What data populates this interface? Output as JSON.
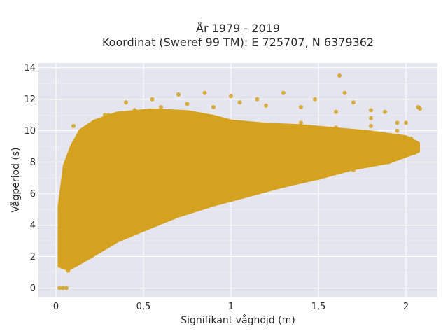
{
  "chart_data": {
    "type": "scatter",
    "title_line1": "År 1979 - 2019",
    "title_line2": "Koordinat (Sweref 99 TM): E 725707, N 6379362",
    "xlabel": "Signifikant våghöjd (m)",
    "ylabel": "Vågperiod (s)",
    "xlim": [
      -0.1,
      2.18
    ],
    "ylim": [
      -0.6,
      14.3
    ],
    "x_ticks": [
      0,
      0.5,
      1,
      1.5,
      2
    ],
    "x_tick_labels": [
      "0",
      "0,5",
      "1",
      "1,5",
      "2"
    ],
    "y_ticks": [
      0,
      2,
      4,
      6,
      8,
      10,
      12,
      14
    ],
    "y_tick_labels": [
      "0",
      "2",
      "4",
      "6",
      "8",
      "10",
      "12",
      "14"
    ],
    "grid": true,
    "marker_color": "#D4A21F",
    "plot_bg": "#E5E5EF",
    "x": [
      0.02,
      0.04,
      0.06,
      0.05,
      0.07,
      0.03,
      0.05,
      0.08,
      0.1,
      0.12,
      0.15,
      0.18,
      0.2,
      0.1,
      0.3,
      0.45,
      0.6,
      0.75,
      0.9,
      1.05,
      1.2,
      1.4,
      1.6,
      1.8,
      2.0,
      2.07,
      0.4,
      0.6,
      0.8,
      1.0,
      1.2,
      1.4,
      1.6,
      1.8,
      1.95,
      0.3,
      0.5,
      0.7,
      0.9,
      1.1,
      1.3,
      1.5,
      1.7,
      1.9,
      2.05,
      0.1,
      0.15,
      0.2,
      0.3,
      0.4,
      0.25,
      0.35,
      0.45,
      0.55,
      0.65,
      0.75,
      0.85,
      0.95,
      1.05,
      1.15,
      1.25,
      1.35,
      1.45,
      1.55,
      1.62,
      1.65,
      1.8,
      1.95,
      2.03,
      0.05,
      0.08,
      0.12,
      0.16,
      0.22,
      0.28,
      0.4,
      0.55,
      0.7,
      0.85,
      1.0,
      1.15,
      1.3,
      1.48,
      1.7,
      1.88,
      2.08,
      0.35,
      0.55,
      0.78,
      1.02,
      1.22,
      1.38,
      1.52,
      1.75
    ],
    "y": [
      0,
      0,
      0,
      1.3,
      1.1,
      2.0,
      3.0,
      4.0,
      5.0,
      6.0,
      7.0,
      8.5,
      9.5,
      10.3,
      11.0,
      11.3,
      11.5,
      11.7,
      11.5,
      11.8,
      11.6,
      11.5,
      11.2,
      10.8,
      10.5,
      11.5,
      10.0,
      10.2,
      10.3,
      10.5,
      10.3,
      10.5,
      10.2,
      10.3,
      10.0,
      3.0,
      4.0,
      5.0,
      5.5,
      6.0,
      6.5,
      7.0,
      7.5,
      8.0,
      8.6,
      1.5,
      2.0,
      2.5,
      3.5,
      4.5,
      8.0,
      8.5,
      9.0,
      9.5,
      9.0,
      9.5,
      10.0,
      9.8,
      9.5,
      9.8,
      9.6,
      9.3,
      9.0,
      8.8,
      13.5,
      12.4,
      11.3,
      10.5,
      9.5,
      5.0,
      7.0,
      9.5,
      10.0,
      10.5,
      11.0,
      11.8,
      12.0,
      12.3,
      12.4,
      12.2,
      12.0,
      12.4,
      12.0,
      11.8,
      11.2,
      11.4,
      6.0,
      6.8,
      7.5,
      8.0,
      8.3,
      8.4,
      8.6,
      8.9
    ]
  }
}
